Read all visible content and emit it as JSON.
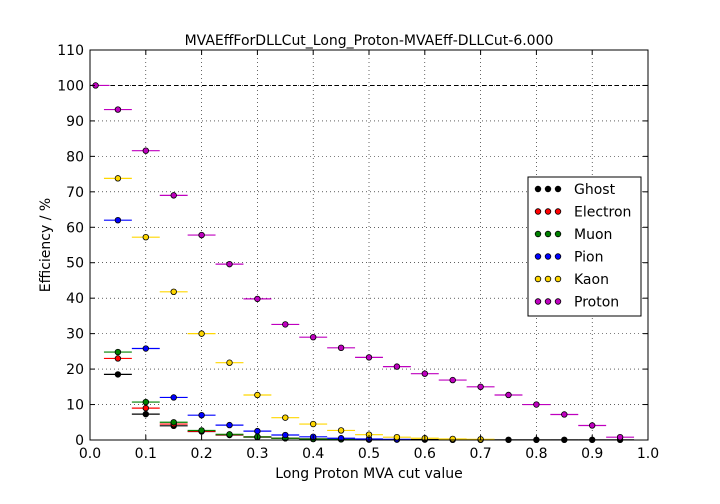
{
  "chart_data": {
    "type": "scatter",
    "title": "MVAEffForDLLCut_Long_Proton-MVAEff-DLLCut-6.000",
    "xlabel": "Long Proton MVA cut value",
    "ylabel": "Efficiency / %",
    "xlim": [
      0.0,
      1.0
    ],
    "ylim": [
      0,
      110
    ],
    "xticks": [
      "0.0",
      "0.1",
      "0.2",
      "0.3",
      "0.4",
      "0.5",
      "0.6",
      "0.7",
      "0.8",
      "0.9",
      "1.0"
    ],
    "yticks": [
      "0",
      "10",
      "20",
      "30",
      "40",
      "50",
      "60",
      "70",
      "80",
      "90",
      "100",
      "110"
    ],
    "grid": true,
    "reference_line": 100,
    "bin_half_width": 0.025,
    "legend_position": "center-right",
    "series": [
      {
        "name": "Ghost",
        "color": "#000000",
        "x": [
          0.05,
          0.1,
          0.15,
          0.2,
          0.25,
          0.3,
          0.35,
          0.4,
          0.45,
          0.5,
          0.55,
          0.6,
          0.65,
          0.7,
          0.75,
          0.8,
          0.85,
          0.9,
          0.95
        ],
        "y": [
          18.5,
          7.3,
          4.0,
          2.4,
          1.4,
          0.8,
          0.5,
          0.3,
          0.2,
          0.15,
          0.1,
          0.1,
          0.05,
          0.05,
          0.05,
          0.05,
          0.05,
          0.05,
          0.05
        ]
      },
      {
        "name": "Electron",
        "color": "#ff0000",
        "x": [
          0.05,
          0.1,
          0.15,
          0.2,
          0.25,
          0.3,
          0.35,
          0.4,
          0.45,
          0.5
        ],
        "y": [
          23.0,
          9.0,
          4.5,
          2.5,
          1.5,
          0.9,
          0.5,
          0.3,
          0.2,
          0.1
        ]
      },
      {
        "name": "Muon",
        "color": "#008000",
        "x": [
          0.05,
          0.1,
          0.15,
          0.2,
          0.25,
          0.3,
          0.35,
          0.4,
          0.45
        ],
        "y": [
          24.8,
          10.7,
          5.0,
          2.7,
          1.6,
          0.9,
          0.5,
          0.3,
          0.2
        ]
      },
      {
        "name": "Pion",
        "color": "#0000ff",
        "x": [
          0.05,
          0.1,
          0.15,
          0.2,
          0.25,
          0.3,
          0.35,
          0.4,
          0.45,
          0.5,
          0.55
        ],
        "y": [
          62.0,
          25.8,
          12.0,
          7.0,
          4.2,
          2.5,
          1.4,
          0.9,
          0.5,
          0.3,
          0.2
        ]
      },
      {
        "name": "Kaon",
        "color": "#ffd700",
        "x": [
          0.05,
          0.1,
          0.15,
          0.2,
          0.25,
          0.3,
          0.35,
          0.4,
          0.45,
          0.5,
          0.55,
          0.6,
          0.65,
          0.7
        ],
        "y": [
          73.8,
          57.2,
          41.8,
          30.0,
          21.8,
          12.7,
          6.3,
          4.5,
          2.7,
          1.5,
          0.8,
          0.5,
          0.3,
          0.2
        ]
      },
      {
        "name": "Proton",
        "color": "#bf00bf",
        "x": [
          0.01,
          0.05,
          0.1,
          0.15,
          0.2,
          0.25,
          0.3,
          0.35,
          0.4,
          0.45,
          0.5,
          0.55,
          0.6,
          0.65,
          0.7,
          0.75,
          0.8,
          0.85,
          0.9,
          0.95
        ],
        "y": [
          100.0,
          93.2,
          81.6,
          69.0,
          57.8,
          49.6,
          39.8,
          32.6,
          29.0,
          26.0,
          23.3,
          20.7,
          18.7,
          16.9,
          15.0,
          12.7,
          10.0,
          7.2,
          4.1,
          0.8
        ]
      }
    ]
  }
}
